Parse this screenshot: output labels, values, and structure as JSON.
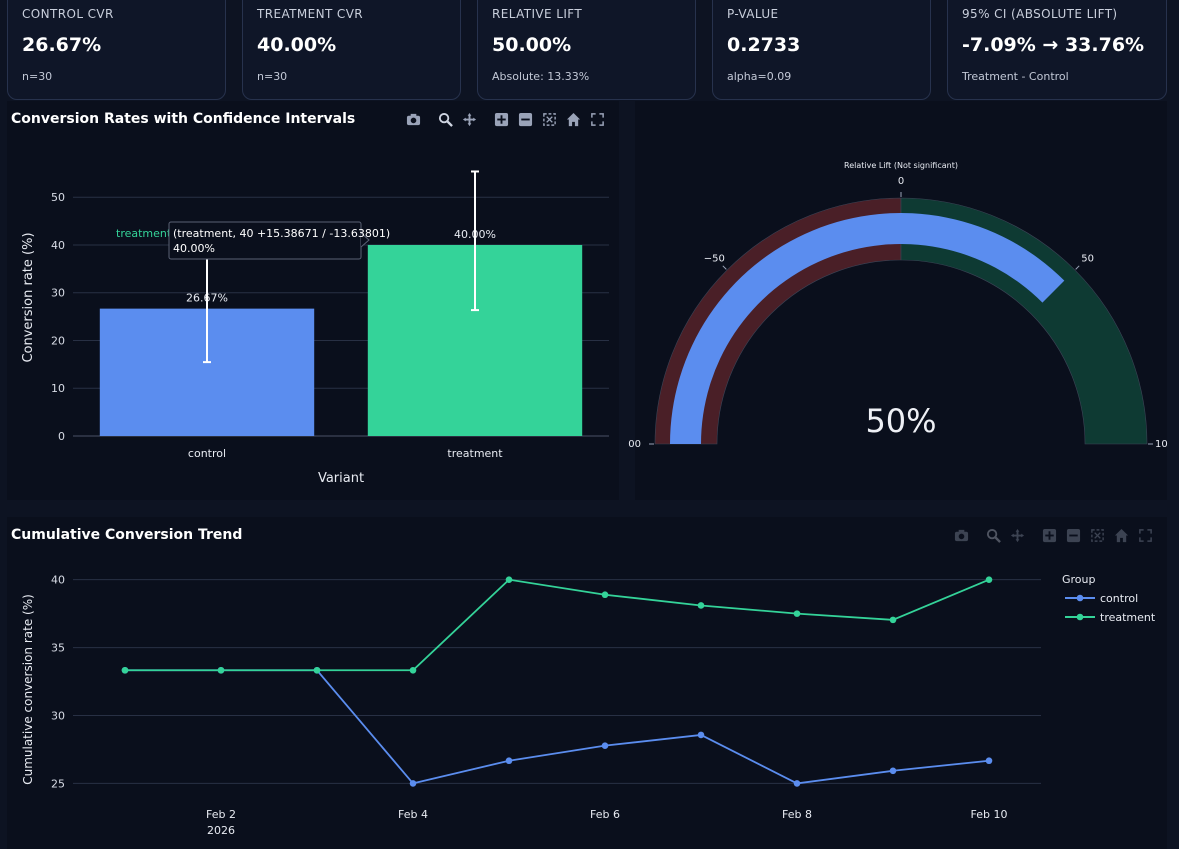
{
  "kpis": [
    {
      "label": "CONTROL CVR",
      "value": "26.67%",
      "sub": "n=30"
    },
    {
      "label": "TREATMENT CVR",
      "value": "40.00%",
      "sub": "n=30"
    },
    {
      "label": "RELATIVE LIFT",
      "value": "50.00%",
      "sub": "Absolute: 13.33%"
    },
    {
      "label": "P-VALUE",
      "value": "0.2733",
      "sub": "alpha=0.09"
    },
    {
      "label": "95% CI (ABSOLUTE LIFT)",
      "value": "-7.09% → 33.76%",
      "sub": "Treatment - Control"
    }
  ],
  "bar_panel": {
    "title": "Conversion Rates with Confidence Intervals",
    "tooltip": {
      "series": "treatment",
      "line1": "(treatment, 40 +15.38671 / -13.63801)",
      "line2": "40.00%"
    }
  },
  "gauge_panel": {
    "title": "Relative Lift (Not significant)",
    "value_text": "50%",
    "ticks": [
      "00",
      "−50",
      "0",
      "50",
      "10"
    ]
  },
  "trend_panel": {
    "title": "Cumulative Conversion Trend",
    "legend_title": "Group"
  },
  "chart_data": [
    {
      "type": "bar",
      "categories": [
        "control",
        "treatment"
      ],
      "values": [
        26.67,
        40.0
      ],
      "data_labels": [
        "26.67%",
        "40.00%"
      ],
      "error_plus": [
        11.0,
        15.38671
      ],
      "error_minus": [
        11.2,
        13.63801
      ],
      "xlabel": "Variant",
      "ylabel": "Conversion rate (%)",
      "ylim": [
        0,
        58
      ],
      "yticks": [
        0,
        10,
        20,
        30,
        40,
        50
      ],
      "colors": [
        "#5b8def",
        "#34d399"
      ],
      "grid": true
    },
    {
      "type": "gauge",
      "value": 50,
      "range": [
        -100,
        100
      ],
      "bands": [
        {
          "from": -100,
          "to": 0,
          "color": "#4a1f27"
        },
        {
          "from": 0,
          "to": 100,
          "color": "#0e3a33"
        }
      ],
      "bar_color": "#5b8def",
      "title": "Relative Lift (Not significant)"
    },
    {
      "type": "line",
      "x": [
        "2026-02-01",
        "2026-02-02",
        "2026-02-03",
        "2026-02-04",
        "2026-02-05",
        "2026-02-06",
        "2026-02-07",
        "2026-02-08",
        "2026-02-09",
        "2026-02-10"
      ],
      "series": [
        {
          "name": "control",
          "color": "#5b8def",
          "values": [
            33.33,
            33.33,
            33.33,
            25.0,
            26.67,
            27.78,
            28.57,
            25.0,
            25.93,
            26.67
          ]
        },
        {
          "name": "treatment",
          "color": "#34d399",
          "values": [
            33.33,
            33.33,
            33.33,
            33.33,
            40.0,
            38.89,
            38.1,
            37.5,
            37.04,
            40.0
          ]
        }
      ],
      "xticks": [
        "Feb 2",
        "Feb 4",
        "Feb 6",
        "Feb 8",
        "Feb 10"
      ],
      "xtick_sub": "2026",
      "ylabel": "Cumulative conversion rate (%)",
      "ylim": [
        24,
        41.3
      ],
      "yticks": [
        25,
        30,
        35,
        40
      ],
      "legend_title": "Group",
      "legend_position": "right",
      "grid": true
    }
  ]
}
